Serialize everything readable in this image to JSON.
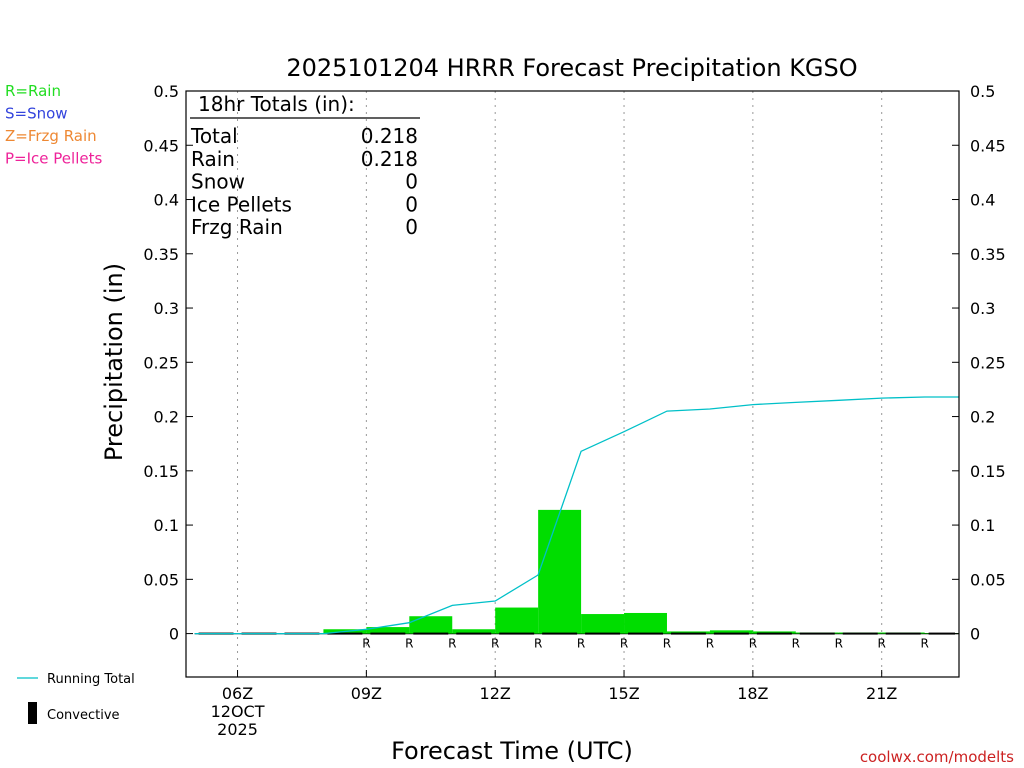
{
  "chart_data": {
    "type": "bar",
    "title": "2025101204 HRRR Forecast Precipitation KGSO",
    "xlabel": "Forecast Time (UTC)",
    "ylabel": "Precipitation (in)",
    "ylim": [
      -0.04,
      0.5
    ],
    "xlim": [
      4.8,
      22.8
    ],
    "grid": "vertical dotted",
    "y_ticks": [
      0,
      0.05,
      0.1,
      0.15,
      0.2,
      0.25,
      0.3,
      0.35,
      0.4,
      0.45,
      0.5
    ],
    "y_tick_labels": [
      "0",
      "0.05",
      "0.1",
      "0.15",
      "0.2",
      "0.25",
      "0.3",
      "0.35",
      "0.4",
      "0.45",
      "0.5"
    ],
    "x_ticks": [
      {
        "hour": 6,
        "label": "06Z"
      },
      {
        "hour": 9,
        "label": "09Z"
      },
      {
        "hour": 12,
        "label": "12Z"
      },
      {
        "hour": 15,
        "label": "15Z"
      },
      {
        "hour": 18,
        "label": "18Z"
      },
      {
        "hour": 21,
        "label": "21Z"
      }
    ],
    "date_label": [
      "12OCT",
      "2025"
    ],
    "series": [
      {
        "name": "Rain",
        "color": "#00dd00",
        "hours_end": [
          6,
          7,
          8,
          9,
          10,
          11,
          12,
          13,
          14,
          15,
          16,
          17,
          18,
          19,
          20,
          21,
          22,
          23
        ],
        "values": [
          0,
          0,
          0,
          0.004,
          0.006,
          0.016,
          0.004,
          0.024,
          0.114,
          0.018,
          0.019,
          0.002,
          0.003,
          0.002,
          0.001,
          0.001,
          0.001,
          0.0005
        ]
      },
      {
        "name": "Running Total",
        "color": "#00c0c8",
        "x": [
          5,
          6,
          7,
          8,
          9,
          10,
          11,
          12,
          13,
          14,
          15,
          16,
          17,
          18,
          19,
          20,
          21,
          22,
          22.8
        ],
        "values": [
          0,
          0,
          0,
          0,
          0.004,
          0.01,
          0.026,
          0.03,
          0.054,
          0.168,
          0.186,
          0.205,
          0.207,
          0.211,
          0.213,
          0.215,
          0.217,
          0.218,
          0.218
        ]
      },
      {
        "name": "Convective",
        "color": "#000000",
        "values": [
          0,
          0,
          0,
          0,
          0,
          0,
          0,
          0,
          0,
          0,
          0,
          0,
          0,
          0,
          0,
          0,
          0,
          0
        ]
      }
    ],
    "precip_type_markers": {
      "letter": "R",
      "color": "#00dd00",
      "hours": [
        9,
        10,
        11,
        12,
        13,
        14,
        15,
        16,
        17,
        18,
        19,
        20,
        21,
        22
      ]
    },
    "totals_box": {
      "header": "18hr Totals (in):",
      "rows": [
        {
          "label": "Total",
          "value": "0.218"
        },
        {
          "label": "Rain",
          "value": "0.218"
        },
        {
          "label": "Snow",
          "value": "0"
        },
        {
          "label": "Ice Pellets",
          "value": "0"
        },
        {
          "label": "Frzg Rain",
          "value": "0"
        }
      ]
    },
    "type_legend": [
      {
        "text": "R=Rain",
        "color": "#22dd22"
      },
      {
        "text": "S=Snow",
        "color": "#3344dd"
      },
      {
        "text": "Z=Frzg Rain",
        "color": "#ee8833"
      },
      {
        "text": "P=Ice Pellets",
        "color": "#ee2299"
      }
    ],
    "line_legend": [
      {
        "text": "Running Total",
        "color": "#00c0c8",
        "kind": "line"
      },
      {
        "text": "Convective",
        "color": "#000000",
        "kind": "bar"
      }
    ],
    "watermark": "coolwx.com/modelts"
  }
}
